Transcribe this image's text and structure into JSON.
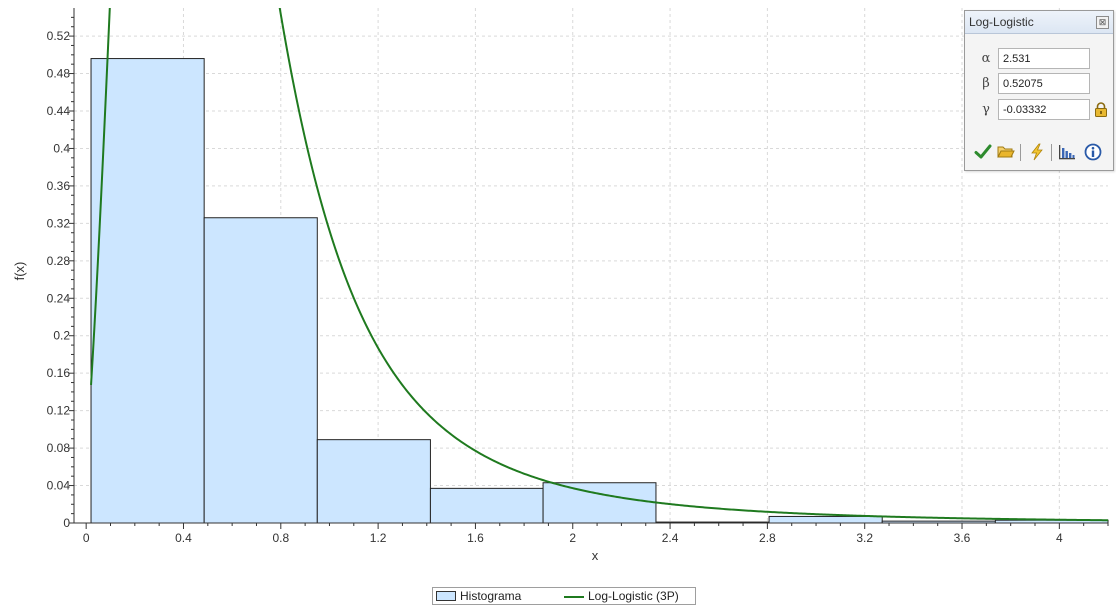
{
  "chart_data": {
    "type": "bar",
    "xlabel": "x",
    "ylabel": "f(x)",
    "xlim": [
      -0.05,
      4.2
    ],
    "ylim": [
      0,
      0.55
    ],
    "x_ticks": [
      0,
      0.4,
      0.8,
      1.2,
      1.6,
      2,
      2.4,
      2.8,
      3.2,
      3.6,
      4
    ],
    "x_tick_labels": [
      "0",
      "0.4",
      "0.8",
      "1.2",
      "1.6",
      "2",
      "2.4",
      "2.8",
      "3.2",
      "3.6",
      "4"
    ],
    "y_ticks": [
      0,
      0.04,
      0.08,
      0.12,
      0.16,
      0.2,
      0.24,
      0.28,
      0.32,
      0.36,
      0.4,
      0.44,
      0.48,
      0.52
    ],
    "y_tick_labels": [
      "0",
      "0.04",
      "0.08",
      "0.12",
      "0.16",
      "0.2",
      "0.24",
      "0.28",
      "0.32",
      "0.36",
      "0.4",
      "0.44",
      "0.48",
      "0.52"
    ],
    "grid": true,
    "legend_placement": "bottom-center",
    "histogram": {
      "name": "Histograma",
      "color": "#cce6ff",
      "edge_color": "#222222",
      "bin_edges": [
        0.02,
        0.485,
        0.95,
        1.415,
        1.878,
        2.342,
        2.807,
        3.272,
        3.737,
        4.2
      ],
      "values": [
        0.496,
        0.326,
        0.089,
        0.037,
        0.043,
        0.001,
        0.007,
        0.002,
        0.003
      ]
    },
    "curve": {
      "name": "Log-Logistic (3P)",
      "color": "#1f7a1f",
      "distribution": "log-logistic-3p",
      "params": {
        "alpha": 2.531,
        "beta": 0.52075,
        "gamma": -0.03332
      },
      "x_range": [
        0.02,
        4.2
      ]
    }
  },
  "legend": {
    "histogram_label": "Histograma",
    "curve_label": "Log-Logistic (3P)"
  },
  "panel": {
    "title": "Log-Logistic",
    "close_symbol": "⊠",
    "params": [
      {
        "symbol": "α",
        "value": "2.531"
      },
      {
        "symbol": "β",
        "value": "0.52075"
      },
      {
        "symbol": "γ",
        "value": "-0.03332"
      }
    ],
    "toolbar_icons": [
      "check-icon",
      "folder-open-icon",
      "lightning-icon",
      "bar-chart-icon",
      "info-icon"
    ],
    "accent_colors": {
      "check": "#2e8b2e",
      "folder": "#e2b431",
      "lightning": "#e8b51c",
      "info": "#2a5aa8"
    }
  }
}
